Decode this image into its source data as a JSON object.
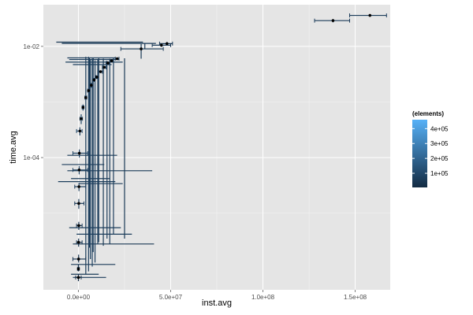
{
  "chart_data": {
    "type": "scatter",
    "title": "",
    "xlabel": "inst.avg",
    "ylabel": "time.avg",
    "x_scale": "linear",
    "y_scale": "log10",
    "xlim": [
      -19000000,
      169000000
    ],
    "ylim": [
      4.2e-07,
      0.056
    ],
    "x_ticks": [
      {
        "value": 0,
        "label": "0.0e+00"
      },
      {
        "value": 50000000,
        "label": "5.0e+07"
      },
      {
        "value": 100000000,
        "label": "1.0e+08"
      },
      {
        "value": 150000000,
        "label": "1.5e+08"
      }
    ],
    "y_ticks": [
      {
        "value": 0.0001,
        "label": "1e-04"
      },
      {
        "value": 0.01,
        "label": "1e-02"
      }
    ],
    "grid": true,
    "legend": {
      "title": "(elements)",
      "placement": "right",
      "low_color": "#132B43",
      "high_color": "#56B1F7",
      "range": [
        5000,
        460000
      ],
      "ticks": [
        {
          "value": 100000,
          "label": "1e+05"
        },
        {
          "value": 200000,
          "label": "2e+05"
        },
        {
          "value": 300000,
          "label": "3e+05"
        },
        {
          "value": 400000,
          "label": "4e+05"
        }
      ]
    },
    "colors": {
      "panel": "#E5E5E5",
      "grid_major": "#FFFFFF",
      "grid_minor": "#F2F2F2",
      "point": "#000000"
    },
    "points": [
      {
        "x": 0,
        "y": 7e-07,
        "xmin": -1500000,
        "xmax": 1500000,
        "ymin": 6e-07,
        "ymax": 8e-07,
        "elements": 20000
      },
      {
        "x": 0,
        "y": 1e-06,
        "xmin": -500000,
        "xmax": 500000,
        "ymin": 9e-07,
        "ymax": 1.2e-06,
        "elements": 30000
      },
      {
        "x": 100000,
        "y": 1.5e-06,
        "xmin": -3000000,
        "xmax": 4000000,
        "ymin": 1.3e-06,
        "ymax": 1.8e-06,
        "elements": 40000
      },
      {
        "x": 100000,
        "y": 3e-06,
        "xmin": -1000000,
        "xmax": 2000000,
        "ymin": 2.5e-06,
        "ymax": 3.5e-06,
        "elements": 45000
      },
      {
        "x": 200000,
        "y": 6e-06,
        "xmin": -1000000,
        "xmax": 2000000,
        "ymin": 5e-06,
        "ymax": 7e-06,
        "elements": 50000
      },
      {
        "x": 200000,
        "y": 1.5e-05,
        "xmin": -2000000,
        "xmax": 3000000,
        "ymin": 1.2e-05,
        "ymax": 1.8e-05,
        "elements": 60000
      },
      {
        "x": 300000,
        "y": 3e-05,
        "xmin": -2000000,
        "xmax": 4000000,
        "ymin": 2.5e-05,
        "ymax": 3.5e-05,
        "elements": 70000
      },
      {
        "x": 400000,
        "y": 6e-05,
        "xmin": -3000000,
        "xmax": 5000000,
        "ymin": 5e-05,
        "ymax": 7e-05,
        "elements": 80000
      },
      {
        "x": 500000,
        "y": 0.00012,
        "xmin": -3000000,
        "xmax": 5000000,
        "ymin": 0.0001,
        "ymax": 0.00014,
        "elements": 90000
      },
      {
        "x": 800000,
        "y": 0.0003,
        "xmin": -1000000,
        "xmax": 2000000,
        "ymin": 0.00025,
        "ymax": 0.00035,
        "elements": 100000
      },
      {
        "x": 1500000,
        "y": 0.0005,
        "xmin": 800000,
        "xmax": 2200000,
        "ymin": 0.0004,
        "ymax": 0.0006,
        "elements": 95000
      },
      {
        "x": 2500000,
        "y": 0.0008,
        "xmin": 2000000,
        "xmax": 3000000,
        "ymin": 0.0007,
        "ymax": 0.0009,
        "elements": 90000
      },
      {
        "x": 4000000,
        "y": 0.0012,
        "xmin": 3500000,
        "xmax": 4500000,
        "ymin": 0.0011,
        "ymax": 0.0013,
        "elements": 85000
      },
      {
        "x": 5500000,
        "y": 0.0016,
        "xmin": 5000000,
        "xmax": 6000000,
        "ymin": 0.0015,
        "ymax": 0.0017,
        "elements": 80000
      },
      {
        "x": 7000000,
        "y": 0.002,
        "xmin": 6500000,
        "xmax": 7500000,
        "ymin": 0.0018,
        "ymax": 0.0022,
        "elements": 75000
      },
      {
        "x": 8500000,
        "y": 0.0025,
        "xmin": 8000000,
        "xmax": 9000000,
        "ymin": 0.0023,
        "ymax": 0.0027,
        "elements": 72000
      },
      {
        "x": 10000000,
        "y": 0.0028,
        "xmin": 9500000,
        "xmax": 10500000,
        "ymin": 0.0026,
        "ymax": 0.003,
        "elements": 70000
      },
      {
        "x": 12000000,
        "y": 0.0035,
        "xmin": 11000000,
        "xmax": 13000000,
        "ymin": 0.0033,
        "ymax": 0.0037,
        "elements": 68000
      },
      {
        "x": 14000000,
        "y": 0.0042,
        "xmin": 13000000,
        "xmax": 15000000,
        "ymin": 0.004,
        "ymax": 0.0044,
        "elements": 65000
      },
      {
        "x": 16000000,
        "y": 0.005,
        "xmin": 15000000,
        "xmax": 17000000,
        "ymin": 0.0047,
        "ymax": 0.0053,
        "elements": 62000
      },
      {
        "x": 18000000,
        "y": 0.0055,
        "xmin": 17000000,
        "xmax": 19000000,
        "ymin": 0.0052,
        "ymax": 0.0058,
        "elements": 60000
      },
      {
        "x": 21000000,
        "y": 0.006,
        "xmin": 20000000,
        "xmax": 22000000,
        "ymin": 0.0057,
        "ymax": 0.0063,
        "elements": 58000
      },
      {
        "x": 34000000,
        "y": 0.009,
        "xmin": 23000000,
        "xmax": 46000000,
        "ymin": 0.006,
        "ymax": 0.011,
        "elements": 55000
      },
      {
        "x": 45000000,
        "y": 0.0105,
        "xmin": 40000000,
        "xmax": 50000000,
        "ymin": 0.0098,
        "ymax": 0.0112,
        "elements": 52000
      },
      {
        "x": 48000000,
        "y": 0.0112,
        "xmin": 44000000,
        "xmax": 51000000,
        "ymin": 0.0105,
        "ymax": 0.012,
        "elements": 50000
      },
      {
        "x": 138000000,
        "y": 0.029,
        "xmin": 128000000,
        "xmax": 147000000,
        "ymin": 0.027,
        "ymax": 0.031,
        "elements": 60000
      },
      {
        "x": 158000000,
        "y": 0.036,
        "xmin": 147000000,
        "xmax": 167000000,
        "ymin": 0.034,
        "ymax": 0.038,
        "elements": 62000
      }
    ],
    "extra_segments": [
      {
        "orientation": "h",
        "y": 0.0119,
        "xmin": -12000000,
        "xmax": 35000000,
        "elements": 50000
      },
      {
        "orientation": "h",
        "y": 0.0113,
        "xmin": -9000000,
        "xmax": 42000000,
        "elements": 60000
      },
      {
        "orientation": "h",
        "y": 0.0062,
        "xmin": -6000000,
        "xmax": 20000000,
        "elements": 65000
      },
      {
        "orientation": "h",
        "y": 0.0058,
        "xmin": -5000000,
        "xmax": 22000000,
        "elements": 70000
      },
      {
        "orientation": "h",
        "y": 0.0052,
        "xmin": -7000000,
        "xmax": 24000000,
        "elements": 75000
      },
      {
        "orientation": "h",
        "y": 0.0047,
        "xmin": -3000000,
        "xmax": 18000000,
        "elements": 80000
      },
      {
        "orientation": "h",
        "y": 0.00011,
        "xmin": -6000000,
        "xmax": 21000000,
        "elements": 60000
      },
      {
        "orientation": "h",
        "y": 7.5e-05,
        "xmin": -9000000,
        "xmax": 14000000,
        "elements": 70000
      },
      {
        "orientation": "h",
        "y": 5.8e-05,
        "xmin": -6000000,
        "xmax": 40000000,
        "elements": 55000
      },
      {
        "orientation": "h",
        "y": 4.2e-05,
        "xmin": -4000000,
        "xmax": 17000000,
        "elements": 65000
      },
      {
        "orientation": "h",
        "y": 3.7e-05,
        "xmin": -11000000,
        "xmax": 20000000,
        "elements": 70000
      },
      {
        "orientation": "h",
        "y": 3.4e-05,
        "xmin": 0,
        "xmax": 24000000,
        "elements": 60000
      },
      {
        "orientation": "h",
        "y": 5.5e-06,
        "xmin": -5000000,
        "xmax": 23000000,
        "elements": 65000
      },
      {
        "orientation": "h",
        "y": 4.2e-06,
        "xmin": -1000000,
        "xmax": 29000000,
        "elements": 70000
      },
      {
        "orientation": "h",
        "y": 2.8e-06,
        "xmin": -3000000,
        "xmax": 41000000,
        "elements": 50000
      },
      {
        "orientation": "h",
        "y": 1.2e-06,
        "xmin": -4000000,
        "xmax": 20000000,
        "elements": 55000
      },
      {
        "orientation": "h",
        "y": 8e-07,
        "xmin": -4000000,
        "xmax": 11000000,
        "elements": 60000
      },
      {
        "orientation": "h",
        "y": 7e-07,
        "xmin": -3000000,
        "xmax": 15000000,
        "elements": 65000
      },
      {
        "orientation": "v",
        "x": 4000000,
        "ymin": 8e-07,
        "ymax": 0.0065,
        "elements": 60000
      },
      {
        "orientation": "v",
        "x": 5500000,
        "ymin": 9e-07,
        "ymax": 0.0065,
        "elements": 70000
      },
      {
        "orientation": "v",
        "x": 6000000,
        "ymin": 2.4e-06,
        "ymax": 0.0061,
        "elements": 65000
      },
      {
        "orientation": "v",
        "x": 6500000,
        "ymin": 1.5e-06,
        "ymax": 0.0058,
        "elements": 75000
      },
      {
        "orientation": "v",
        "x": 7500000,
        "ymin": 1.1e-06,
        "ymax": 0.006,
        "elements": 80000
      },
      {
        "orientation": "v",
        "x": 8000000,
        "ymin": 2e-06,
        "ymax": 0.0062,
        "elements": 60000
      },
      {
        "orientation": "v",
        "x": 9000000,
        "ymin": 1.3e-06,
        "ymax": 0.0056,
        "elements": 70000
      },
      {
        "orientation": "v",
        "x": 10500000,
        "ymin": 2.8e-06,
        "ymax": 0.0059,
        "elements": 65000
      },
      {
        "orientation": "v",
        "x": 11000000,
        "ymin": 3e-06,
        "ymax": 0.0063,
        "elements": 60000
      },
      {
        "orientation": "v",
        "x": 13500000,
        "ymin": 2.6e-06,
        "ymax": 0.006,
        "elements": 55000
      },
      {
        "orientation": "v",
        "x": 15500000,
        "ymin": 3.5e-06,
        "ymax": 0.0055,
        "elements": 60000
      },
      {
        "orientation": "v",
        "x": 17000000,
        "ymin": 2.8e-06,
        "ymax": 0.0058,
        "elements": 65000
      },
      {
        "orientation": "v",
        "x": 19000000,
        "ymin": 4.2e-06,
        "ymax": 0.0061,
        "elements": 70000
      },
      {
        "orientation": "v",
        "x": 25000000,
        "ymin": 3.5e-06,
        "ymax": 0.0061,
        "elements": 55000
      },
      {
        "orientation": "v",
        "x": 36000000,
        "ymin": 0.0091,
        "ymax": 0.0112,
        "elements": 50000
      }
    ]
  }
}
